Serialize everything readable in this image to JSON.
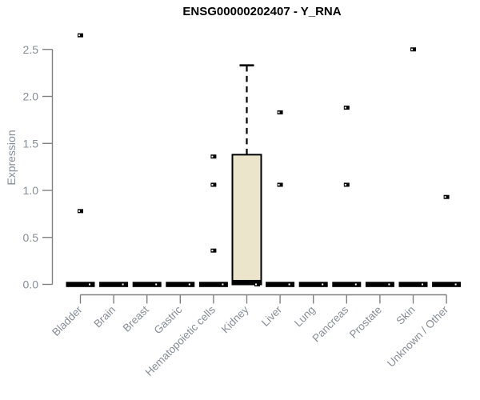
{
  "chart_data": {
    "type": "box",
    "title": "ENSG00000202407 - Y_RNA",
    "ylabel": "Expression",
    "xlabel": "",
    "ylim": [
      0,
      2.75
    ],
    "yticks": [
      0.0,
      0.5,
      1.0,
      1.5,
      2.0,
      2.5
    ],
    "grid": false,
    "legend": "none",
    "categories": [
      "Bladder",
      "Brain",
      "Breast",
      "Gastric",
      "Hematopoietic cells",
      "Kidney",
      "Liver",
      "Lung",
      "Pancreas",
      "Prostate",
      "Skin",
      "Unknown / Other"
    ],
    "boxes": [
      {
        "category": "Bladder",
        "q1": 0,
        "median": 0,
        "q3": 0,
        "whisker_low": 0,
        "whisker_high": 0,
        "outliers": [
          2.65,
          0.78
        ],
        "point_at_zero": true
      },
      {
        "category": "Brain",
        "q1": 0,
        "median": 0,
        "q3": 0,
        "whisker_low": 0,
        "whisker_high": 0,
        "outliers": [],
        "point_at_zero": true
      },
      {
        "category": "Breast",
        "q1": 0,
        "median": 0,
        "q3": 0,
        "whisker_low": 0,
        "whisker_high": 0,
        "outliers": [],
        "point_at_zero": true
      },
      {
        "category": "Gastric",
        "q1": 0,
        "median": 0,
        "q3": 0,
        "whisker_low": 0,
        "whisker_high": 0,
        "outliers": [],
        "point_at_zero": true
      },
      {
        "category": "Hematopoietic cells",
        "q1": 0,
        "median": 0,
        "q3": 0,
        "whisker_low": 0,
        "whisker_high": 0,
        "outliers": [
          1.36,
          1.06,
          0.36
        ],
        "point_at_zero": true
      },
      {
        "category": "Kidney",
        "q1": 0,
        "median": 0.02,
        "q3": 1.38,
        "whisker_low": 0,
        "whisker_high": 2.33,
        "outliers": [],
        "point_at_zero": true
      },
      {
        "category": "Liver",
        "q1": 0,
        "median": 0,
        "q3": 0,
        "whisker_low": 0,
        "whisker_high": 0,
        "outliers": [
          1.83,
          1.06
        ],
        "point_at_zero": true
      },
      {
        "category": "Lung",
        "q1": 0,
        "median": 0,
        "q3": 0,
        "whisker_low": 0,
        "whisker_high": 0,
        "outliers": [],
        "point_at_zero": true
      },
      {
        "category": "Pancreas",
        "q1": 0,
        "median": 0,
        "q3": 0,
        "whisker_low": 0,
        "whisker_high": 0,
        "outliers": [
          1.88,
          1.06
        ],
        "point_at_zero": true
      },
      {
        "category": "Prostate",
        "q1": 0,
        "median": 0,
        "q3": 0,
        "whisker_low": 0,
        "whisker_high": 0,
        "outliers": [],
        "point_at_zero": true
      },
      {
        "category": "Skin",
        "q1": 0,
        "median": 0,
        "q3": 0,
        "whisker_low": 0,
        "whisker_high": 0,
        "outliers": [
          2.5
        ],
        "point_at_zero": true
      },
      {
        "category": "Unknown / Other",
        "q1": 0,
        "median": 0,
        "q3": 0,
        "whisker_low": 0,
        "whisker_high": 0,
        "outliers": [
          0.93
        ],
        "point_at_zero": true
      }
    ],
    "style": {
      "box_fill": "#EAE5CB",
      "box_stroke": "#000000",
      "axis_color": "#808080",
      "label_color": "#878d96",
      "title_color": "#000000",
      "marker": "filled-square-notch"
    }
  }
}
